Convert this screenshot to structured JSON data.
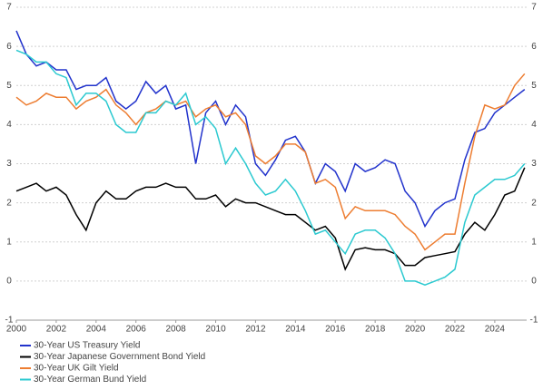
{
  "chart_data": {
    "type": "line",
    "x": [
      2000,
      2000.5,
      2001,
      2001.5,
      2002,
      2002.5,
      2003,
      2003.5,
      2004,
      2004.5,
      2005,
      2005.5,
      2006,
      2006.5,
      2007,
      2007.5,
      2008,
      2008.5,
      2009,
      2009.5,
      2010,
      2010.5,
      2011,
      2011.5,
      2012,
      2012.5,
      2013,
      2013.5,
      2014,
      2014.5,
      2015,
      2015.5,
      2016,
      2016.5,
      2017,
      2017.5,
      2018,
      2018.5,
      2019,
      2019.5,
      2020,
      2020.5,
      2021,
      2021.5,
      2022,
      2022.5,
      2023,
      2023.5,
      2024,
      2024.5,
      2025,
      2025.5
    ],
    "series": [
      {
        "name": "30-Year US Treasury Yield",
        "color": "#2233cc",
        "values": [
          6.4,
          5.8,
          5.5,
          5.6,
          5.4,
          5.4,
          4.9,
          5.0,
          5.0,
          5.2,
          4.6,
          4.4,
          4.6,
          5.1,
          4.8,
          5.0,
          4.4,
          4.5,
          3.0,
          4.3,
          4.6,
          4.0,
          4.5,
          4.2,
          3.0,
          2.7,
          3.1,
          3.6,
          3.7,
          3.3,
          2.5,
          3.0,
          2.8,
          2.3,
          3.0,
          2.8,
          2.9,
          3.1,
          3.0,
          2.3,
          2.0,
          1.4,
          1.8,
          2.0,
          2.1,
          3.1,
          3.8,
          3.9,
          4.3,
          4.5,
          4.7,
          4.9
        ]
      },
      {
        "name": "30-Year Japanese Government Bond Yield",
        "color": "#000000",
        "values": [
          2.3,
          2.4,
          2.5,
          2.3,
          2.4,
          2.2,
          1.7,
          1.3,
          2.0,
          2.3,
          2.1,
          2.1,
          2.3,
          2.4,
          2.4,
          2.5,
          2.4,
          2.4,
          2.1,
          2.1,
          2.2,
          1.9,
          2.1,
          2.0,
          2.0,
          1.9,
          1.8,
          1.7,
          1.7,
          1.5,
          1.3,
          1.4,
          1.1,
          0.3,
          0.8,
          0.85,
          0.8,
          0.8,
          0.7,
          0.4,
          0.4,
          0.6,
          0.65,
          0.7,
          0.75,
          1.2,
          1.5,
          1.3,
          1.7,
          2.2,
          2.3,
          2.9
        ]
      },
      {
        "name": "30-Year UK Gilt Yield",
        "color": "#ed7d31",
        "values": [
          4.7,
          4.5,
          4.6,
          4.8,
          4.7,
          4.7,
          4.4,
          4.6,
          4.7,
          4.9,
          4.5,
          4.3,
          4.0,
          4.3,
          4.4,
          4.6,
          4.5,
          4.6,
          4.2,
          4.4,
          4.5,
          4.2,
          4.3,
          4.0,
          3.2,
          3.0,
          3.2,
          3.5,
          3.5,
          3.3,
          2.5,
          2.6,
          2.4,
          1.6,
          1.9,
          1.8,
          1.8,
          1.8,
          1.7,
          1.4,
          1.2,
          0.8,
          1.0,
          1.2,
          1.2,
          2.5,
          3.7,
          4.5,
          4.4,
          4.5,
          5.0,
          5.3
        ]
      },
      {
        "name": "30-Year German Bund Yield",
        "color": "#2bc9d0",
        "values": [
          5.9,
          5.8,
          5.6,
          5.6,
          5.3,
          5.2,
          4.5,
          4.8,
          4.8,
          4.6,
          4.0,
          3.8,
          3.8,
          4.3,
          4.3,
          4.6,
          4.5,
          4.8,
          4.0,
          4.2,
          3.9,
          3.0,
          3.4,
          3.0,
          2.5,
          2.2,
          2.3,
          2.6,
          2.3,
          1.8,
          1.2,
          1.3,
          1.0,
          0.7,
          1.2,
          1.3,
          1.3,
          1.1,
          0.7,
          0.0,
          0.0,
          -0.1,
          0.0,
          0.1,
          0.3,
          1.5,
          2.2,
          2.4,
          2.6,
          2.6,
          2.7,
          3.0
        ]
      }
    ],
    "xlim": [
      2000,
      2025.6
    ],
    "xticks": [
      2000,
      2002,
      2004,
      2006,
      2008,
      2010,
      2012,
      2014,
      2016,
      2018,
      2020,
      2022,
      2024
    ],
    "ylim": [
      -1,
      7
    ],
    "yticks": [
      -1,
      0,
      1,
      2,
      3,
      4,
      5,
      6,
      7
    ],
    "y2lim": [
      -1,
      7
    ],
    "y2ticks": [
      -1,
      0,
      1,
      2,
      3,
      4,
      5,
      6,
      7
    ],
    "grid": true,
    "legend": "bottom-left"
  }
}
